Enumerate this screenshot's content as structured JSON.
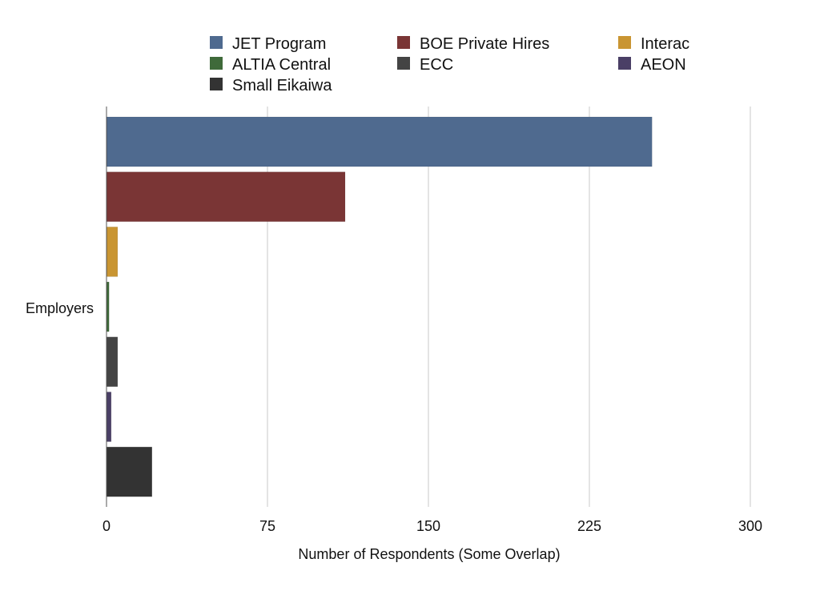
{
  "chart_data": {
    "type": "bar",
    "orientation": "horizontal",
    "title": "",
    "xlabel": "Number of Respondents (Some Overlap)",
    "ylabel": "",
    "categories": [
      "Employers"
    ],
    "xlim": [
      0,
      300
    ],
    "xticks": [
      0,
      75,
      150,
      225,
      300
    ],
    "grid": true,
    "legend_position": "top",
    "series": [
      {
        "name": "JET Program",
        "values": [
          254
        ],
        "color": "#4f6a8f"
      },
      {
        "name": "BOE Private Hires",
        "values": [
          111
        ],
        "color": "#7a3535"
      },
      {
        "name": "Interac",
        "values": [
          5
        ],
        "color": "#c99532"
      },
      {
        "name": "ALTIA Central",
        "values": [
          1
        ],
        "color": "#3f6a3a"
      },
      {
        "name": "ECC",
        "values": [
          5
        ],
        "color": "#444444"
      },
      {
        "name": "AEON",
        "values": [
          2
        ],
        "color": "#4a3f66"
      },
      {
        "name": "Small Eikaiwa",
        "values": [
          21
        ],
        "color": "#333333"
      }
    ]
  }
}
